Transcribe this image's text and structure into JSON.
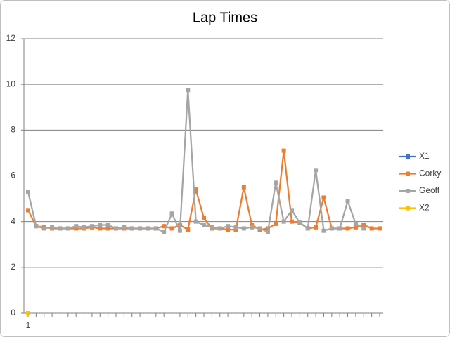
{
  "chart_data": {
    "type": "line",
    "title": "Lap Times",
    "categories": [
      "1",
      null,
      null,
      null,
      null,
      null,
      null,
      null,
      null,
      null,
      null,
      null,
      null,
      null,
      null,
      null,
      null,
      null,
      null,
      null,
      null,
      null,
      null,
      null,
      null,
      null,
      null,
      null,
      null,
      null,
      null,
      null,
      null,
      null,
      null,
      null,
      null,
      null,
      null,
      null,
      null,
      null,
      null,
      null,
      null
    ],
    "series": [
      {
        "name": "X1",
        "color": "#4472c4",
        "values": [
          0,
          null,
          null,
          null,
          null,
          null,
          null,
          null,
          null,
          null,
          null,
          null,
          null,
          null,
          null,
          null,
          null,
          null,
          null,
          null,
          null,
          null,
          null,
          null,
          null,
          null,
          null,
          null,
          null,
          null,
          null,
          null,
          null,
          null,
          null,
          null,
          null,
          null,
          null,
          null,
          null,
          null,
          null,
          null,
          null
        ]
      },
      {
        "name": "Corky",
        "color": "#ed7d31",
        "values": [
          4.5,
          3.8,
          3.75,
          3.7,
          3.7,
          3.7,
          3.7,
          3.7,
          3.75,
          3.7,
          3.7,
          3.7,
          3.7,
          3.7,
          3.7,
          3.7,
          3.7,
          3.8,
          3.7,
          3.85,
          3.65,
          5.4,
          4.15,
          3.7,
          3.7,
          3.65,
          3.65,
          5.5,
          3.85,
          3.65,
          3.7,
          3.9,
          7.1,
          4.0,
          3.95,
          3.7,
          3.75,
          5.05,
          3.7,
          3.7,
          3.7,
          3.75,
          3.85,
          3.7,
          3.7
        ]
      },
      {
        "name": "Geoff",
        "color": "#a5a5a5",
        "values": [
          5.3,
          3.8,
          3.7,
          3.75,
          3.7,
          3.7,
          3.8,
          3.75,
          3.8,
          3.85,
          3.85,
          3.7,
          3.75,
          3.7,
          3.7,
          3.7,
          3.7,
          3.55,
          4.35,
          3.6,
          9.75,
          4.0,
          3.85,
          3.75,
          3.7,
          3.8,
          3.75,
          3.7,
          3.75,
          3.7,
          3.55,
          5.7,
          4.0,
          4.5,
          3.95,
          3.7,
          6.25,
          3.6,
          3.7,
          3.7,
          4.9,
          3.9,
          3.7,
          null,
          null
        ]
      },
      {
        "name": "X2",
        "color": "#ffc000",
        "values": [
          0,
          null,
          null,
          null,
          null,
          null,
          null,
          null,
          null,
          null,
          null,
          null,
          null,
          null,
          null,
          null,
          null,
          null,
          null,
          null,
          null,
          null,
          null,
          null,
          null,
          null,
          null,
          null,
          null,
          null,
          null,
          null,
          null,
          null,
          null,
          null,
          null,
          null,
          null,
          null,
          null,
          null,
          null,
          null,
          null
        ]
      }
    ],
    "ylim": [
      0,
      12
    ],
    "yticks": [
      0,
      2,
      4,
      6,
      8,
      10,
      12
    ],
    "grid": true,
    "legend": "right"
  }
}
